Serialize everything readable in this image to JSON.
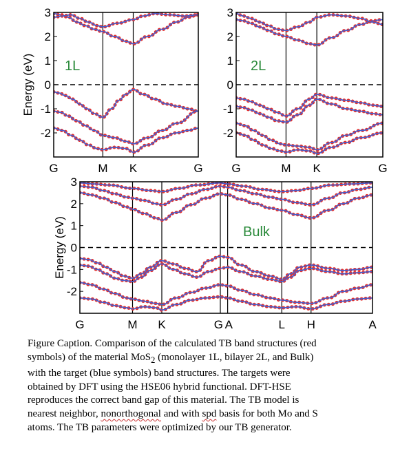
{
  "chart_data": [
    {
      "type": "line",
      "panel_label": "1L",
      "ylabel": "Energy (eV)",
      "ylim": [
        -3,
        3
      ],
      "yticks": [
        3,
        2,
        1,
        0,
        -1,
        -2
      ],
      "xticks": [
        {
          "label": "G",
          "pos": 0.0
        },
        {
          "label": "M",
          "pos": 0.34
        },
        {
          "label": "K",
          "pos": 0.55
        },
        {
          "label": "G",
          "pos": 1.0
        }
      ],
      "fermi_level": 0,
      "series": [
        {
          "color": "#e8302a",
          "marker": "circle",
          "x": [
            0,
            0.04,
            0.08,
            0.13,
            0.18,
            0.23,
            0.28,
            0.34,
            0.4,
            0.45,
            0.5,
            0.55,
            0.62,
            0.7,
            0.78,
            0.86,
            0.93,
            1.0
          ],
          "y": [
            -0.3,
            -0.35,
            -0.45,
            -0.6,
            -0.8,
            -1.0,
            -1.2,
            -1.35,
            -1.0,
            -0.65,
            -0.4,
            -0.2,
            -0.4,
            -0.6,
            -0.8,
            -0.9,
            -1.0,
            -1.1
          ]
        },
        {
          "color": "#e8302a",
          "marker": "circle",
          "x": [
            0,
            0.05,
            0.1,
            0.16,
            0.22,
            0.28,
            0.34,
            0.42,
            0.5,
            0.55,
            0.65,
            0.75,
            0.85,
            1.0
          ],
          "y": [
            -1.1,
            -1.15,
            -1.3,
            -1.5,
            -1.7,
            -1.9,
            -2.1,
            -2.2,
            -2.35,
            -2.45,
            -2.2,
            -1.9,
            -1.6,
            -1.1
          ]
        },
        {
          "color": "#e8302a",
          "marker": "circle",
          "x": [
            0,
            0.06,
            0.12,
            0.18,
            0.24,
            0.3,
            0.34,
            0.42,
            0.5,
            0.55,
            0.65,
            0.75,
            0.85,
            0.93,
            1.0
          ],
          "y": [
            -1.8,
            -1.9,
            -2.1,
            -2.3,
            -2.5,
            -2.65,
            -2.7,
            -2.6,
            -2.65,
            -2.8,
            -2.5,
            -2.2,
            -2.0,
            -1.9,
            -1.8
          ]
        },
        {
          "color": "#e8302a",
          "marker": "circle",
          "x": [
            0,
            0.05,
            0.1,
            0.16,
            0.22,
            0.28,
            0.34,
            0.42,
            0.5,
            0.55,
            0.65,
            0.75,
            0.85,
            0.93,
            1.0
          ],
          "y": [
            2.95,
            2.9,
            2.8,
            2.6,
            2.45,
            2.3,
            2.2,
            2.0,
            1.8,
            1.7,
            2.0,
            2.3,
            2.6,
            2.8,
            2.9
          ]
        },
        {
          "color": "#e8302a",
          "marker": "circle",
          "x": [
            0,
            0.06,
            0.12,
            0.18,
            0.24,
            0.3,
            0.34,
            0.44,
            0.55,
            0.62,
            0.7,
            0.8,
            0.9,
            1.0
          ],
          "y": [
            2.8,
            2.85,
            2.9,
            2.75,
            2.6,
            2.45,
            2.4,
            2.55,
            2.7,
            2.85,
            2.95,
            2.9,
            2.85,
            2.9
          ]
        }
      ]
    },
    {
      "type": "line",
      "panel_label": "2L",
      "ylim": [
        -3,
        3
      ],
      "yticks": [
        3,
        2,
        1,
        0,
        -1,
        -2
      ],
      "xticks": [
        {
          "label": "G",
          "pos": 0.0
        },
        {
          "label": "M",
          "pos": 0.34
        },
        {
          "label": "K",
          "pos": 0.55
        },
        {
          "label": "G",
          "pos": 1.0
        }
      ],
      "fermi_level": 0,
      "series": [
        {
          "color": "#e8302a",
          "marker": "circle",
          "x": [
            0,
            0.05,
            0.1,
            0.16,
            0.22,
            0.28,
            0.34,
            0.42,
            0.5,
            0.55,
            0.65,
            0.75,
            0.85,
            0.93,
            1.0
          ],
          "y": [
            -0.55,
            -0.6,
            -0.7,
            -0.85,
            -1.0,
            -1.15,
            -1.3,
            -1.0,
            -0.6,
            -0.4,
            -0.55,
            -0.65,
            -0.75,
            -0.85,
            -0.9
          ]
        },
        {
          "color": "#e8302a",
          "marker": "circle",
          "x": [
            0,
            0.05,
            0.1,
            0.16,
            0.22,
            0.28,
            0.34,
            0.42,
            0.5,
            0.55,
            0.65,
            0.75,
            0.85,
            0.93,
            1.0
          ],
          "y": [
            -0.9,
            -0.95,
            -1.05,
            -1.2,
            -1.35,
            -1.5,
            -1.55,
            -1.25,
            -0.85,
            -0.6,
            -0.8,
            -1.0,
            -1.1,
            -1.2,
            -1.25
          ]
        },
        {
          "color": "#e8302a",
          "marker": "circle",
          "x": [
            0,
            0.06,
            0.12,
            0.18,
            0.24,
            0.3,
            0.34,
            0.42,
            0.5,
            0.55,
            0.65,
            0.75,
            0.85,
            1.0
          ],
          "y": [
            -1.6,
            -1.7,
            -1.9,
            -2.1,
            -2.3,
            -2.45,
            -2.5,
            -2.55,
            -2.6,
            -2.7,
            -2.4,
            -2.1,
            -1.9,
            -1.6
          ]
        },
        {
          "color": "#e8302a",
          "marker": "circle",
          "x": [
            0,
            0.06,
            0.12,
            0.18,
            0.24,
            0.3,
            0.34,
            0.42,
            0.5,
            0.55,
            0.65,
            0.75,
            0.85,
            1.0
          ],
          "y": [
            -2.0,
            -2.1,
            -2.3,
            -2.5,
            -2.65,
            -2.75,
            -2.8,
            -2.7,
            -2.75,
            -2.85,
            -2.6,
            -2.4,
            -2.2,
            -2.0
          ]
        },
        {
          "color": "#e8302a",
          "marker": "circle",
          "x": [
            0,
            0.05,
            0.1,
            0.16,
            0.22,
            0.28,
            0.34,
            0.42,
            0.5,
            0.55,
            0.65,
            0.75,
            0.85,
            0.93,
            1.0
          ],
          "y": [
            2.7,
            2.65,
            2.55,
            2.4,
            2.25,
            2.1,
            2.0,
            1.85,
            1.7,
            1.65,
            1.95,
            2.25,
            2.5,
            2.65,
            2.7
          ]
        },
        {
          "color": "#e8302a",
          "marker": "circle",
          "x": [
            0,
            0.05,
            0.1,
            0.16,
            0.22,
            0.28,
            0.34,
            0.42,
            0.5,
            0.55,
            0.65,
            0.75,
            0.85,
            0.93,
            1.0
          ],
          "y": [
            2.95,
            2.85,
            2.75,
            2.6,
            2.45,
            2.3,
            2.25,
            2.4,
            2.6,
            2.8,
            2.9,
            2.85,
            2.75,
            2.6,
            2.5
          ]
        }
      ]
    },
    {
      "type": "line",
      "panel_label": "Bulk",
      "ylabel": "Energy (eV)",
      "ylim": [
        -3,
        3
      ],
      "yticks": [
        3,
        2,
        1,
        0,
        -1,
        -2
      ],
      "xticks": [
        {
          "label": "G",
          "pos": 0.0
        },
        {
          "label": "M",
          "pos": 0.18
        },
        {
          "label": "K",
          "pos": 0.28
        },
        {
          "label": "G",
          "pos": 0.48
        },
        {
          "label": "A",
          "pos": 0.505
        },
        {
          "label": "L",
          "pos": 0.69
        },
        {
          "label": "H",
          "pos": 0.79
        },
        {
          "label": "A",
          "pos": 1.0
        }
      ],
      "fermi_level": 0,
      "series": [
        {
          "color": "#e8302a",
          "marker": "circle",
          "x": [
            0,
            0.03,
            0.06,
            0.09,
            0.12,
            0.15,
            0.18,
            0.21,
            0.24,
            0.28,
            0.32,
            0.36,
            0.4,
            0.44,
            0.48,
            0.505,
            0.55,
            0.6,
            0.65,
            0.69,
            0.72,
            0.75,
            0.79,
            0.85,
            0.9,
            0.95,
            1.0
          ],
          "y": [
            -0.5,
            -0.55,
            -0.7,
            -0.9,
            -1.1,
            -1.3,
            -1.4,
            -1.2,
            -0.9,
            -0.6,
            -0.75,
            -0.95,
            -1.1,
            -0.6,
            -0.4,
            -0.45,
            -0.8,
            -1.1,
            -1.3,
            -1.45,
            -1.2,
            -0.9,
            -0.8,
            -0.95,
            -1.05,
            -1.0,
            -0.9
          ]
        },
        {
          "color": "#e8302a",
          "marker": "circle",
          "x": [
            0,
            0.03,
            0.06,
            0.09,
            0.12,
            0.15,
            0.18,
            0.21,
            0.24,
            0.28,
            0.32,
            0.36,
            0.4,
            0.44,
            0.48,
            0.505,
            0.55,
            0.6,
            0.65,
            0.69,
            0.72,
            0.75,
            0.79,
            0.85,
            0.9,
            0.95,
            1.0
          ],
          "y": [
            -0.8,
            -0.85,
            -1.0,
            -1.2,
            -1.4,
            -1.5,
            -1.55,
            -1.35,
            -1.05,
            -0.75,
            -1.0,
            -1.2,
            -1.35,
            -1.1,
            -0.95,
            -0.9,
            -1.1,
            -1.3,
            -1.45,
            -1.55,
            -1.35,
            -1.05,
            -0.95,
            -1.1,
            -1.2,
            -1.15,
            -1.1
          ]
        },
        {
          "color": "#e8302a",
          "marker": "circle",
          "x": [
            0,
            0.04,
            0.08,
            0.12,
            0.16,
            0.18,
            0.22,
            0.26,
            0.28,
            0.33,
            0.38,
            0.43,
            0.48,
            0.505,
            0.55,
            0.6,
            0.65,
            0.69,
            0.74,
            0.79,
            0.85,
            0.9,
            0.95,
            1.0
          ],
          "y": [
            -1.6,
            -1.7,
            -1.9,
            -2.1,
            -2.3,
            -2.35,
            -2.45,
            -2.55,
            -2.6,
            -2.3,
            -2.05,
            -1.85,
            -1.7,
            -1.75,
            -1.95,
            -2.15,
            -2.3,
            -2.4,
            -2.5,
            -2.55,
            -2.3,
            -2.0,
            -1.85,
            -1.7
          ]
        },
        {
          "color": "#e8302a",
          "marker": "circle",
          "x": [
            0,
            0.04,
            0.08,
            0.12,
            0.16,
            0.18,
            0.22,
            0.26,
            0.28,
            0.33,
            0.38,
            0.43,
            0.48,
            0.505,
            0.55,
            0.6,
            0.65,
            0.69,
            0.74,
            0.79,
            0.85,
            0.9,
            0.95,
            1.0
          ],
          "y": [
            -2.3,
            -2.35,
            -2.5,
            -2.65,
            -2.75,
            -2.8,
            -2.7,
            -2.75,
            -2.85,
            -2.6,
            -2.4,
            -2.3,
            -2.25,
            -2.3,
            -2.45,
            -2.6,
            -2.7,
            -2.75,
            -2.7,
            -2.8,
            -2.6,
            -2.45,
            -2.35,
            -2.3
          ]
        },
        {
          "color": "#e8302a",
          "marker": "circle",
          "x": [
            0,
            0.04,
            0.08,
            0.12,
            0.16,
            0.18,
            0.22,
            0.26,
            0.28,
            0.33,
            0.38,
            0.43,
            0.48,
            0.505,
            0.55,
            0.6,
            0.65,
            0.69,
            0.74,
            0.79,
            0.85,
            0.9,
            0.95,
            1.0
          ],
          "y": [
            2.5,
            2.4,
            2.25,
            2.05,
            1.85,
            1.75,
            1.55,
            1.35,
            1.25,
            1.6,
            1.95,
            2.25,
            2.45,
            2.4,
            2.2,
            2.0,
            1.8,
            1.7,
            1.5,
            1.35,
            1.7,
            2.0,
            2.25,
            2.4
          ]
        },
        {
          "color": "#e8302a",
          "marker": "circle",
          "x": [
            0,
            0.04,
            0.08,
            0.12,
            0.16,
            0.18,
            0.22,
            0.26,
            0.28,
            0.33,
            0.38,
            0.43,
            0.48,
            0.505,
            0.55,
            0.6,
            0.65,
            0.69,
            0.74,
            0.79,
            0.85,
            0.9,
            0.95,
            1.0
          ],
          "y": [
            2.8,
            2.75,
            2.6,
            2.45,
            2.3,
            2.25,
            2.15,
            2.0,
            1.95,
            2.2,
            2.45,
            2.65,
            2.8,
            2.75,
            2.6,
            2.45,
            2.3,
            2.2,
            2.05,
            1.95,
            2.25,
            2.5,
            2.65,
            2.75
          ]
        },
        {
          "color": "#e8302a",
          "marker": "circle",
          "x": [
            0,
            0.05,
            0.1,
            0.18,
            0.24,
            0.28,
            0.34,
            0.4,
            0.48,
            0.505,
            0.56,
            0.62,
            0.69,
            0.74,
            0.79,
            0.86,
            0.93,
            1.0
          ],
          "y": [
            2.95,
            2.9,
            2.85,
            2.7,
            2.6,
            2.55,
            2.7,
            2.85,
            2.95,
            2.9,
            2.8,
            2.65,
            2.55,
            2.6,
            2.7,
            2.85,
            2.9,
            2.95
          ]
        }
      ]
    }
  ],
  "caption": {
    "line1": "Figure Caption. Comparison of the calculated TB band structures (red",
    "line2a": "symbols) of the material MoS",
    "line2sub": "2",
    "line2b": " (monolayer 1L, bilayer 2L, and Bulk)",
    "line3": "with the target (blue symbols) band structures. The targets were",
    "line4": "obtained by DFT using the HSE06 hybrid functional. DFT-HSE",
    "line5": "reproduces the correct band gap of this material. The TB model is",
    "line6a": "nearest neighbor, ",
    "line6b": "nonorthogonal",
    "line6c": " and with ",
    "line6d": "spd",
    "line6e": " basis for both Mo and S",
    "line7": "atoms. The TB parameters were optimized by our TB generator."
  }
}
